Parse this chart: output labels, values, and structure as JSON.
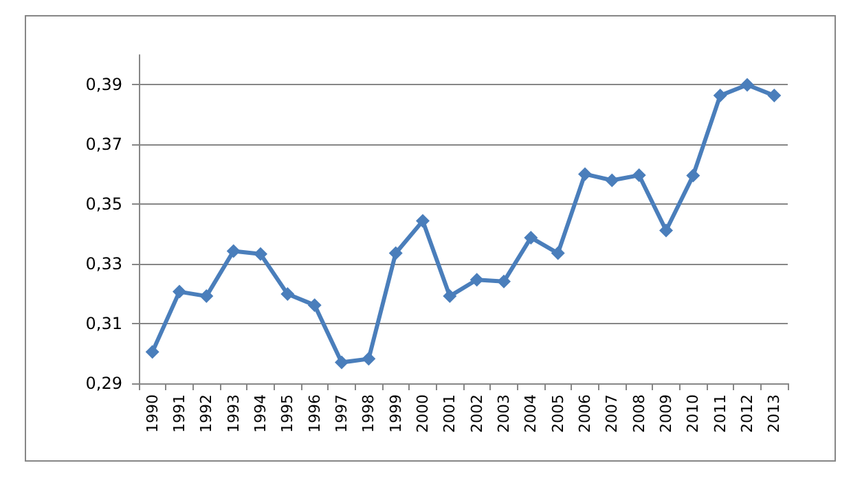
{
  "chart_data": {
    "type": "line",
    "categories": [
      "1990",
      "1991",
      "1992",
      "1993",
      "1994",
      "1995",
      "1996",
      "1997",
      "1998",
      "1999",
      "2000",
      "2001",
      "2002",
      "2003",
      "2004",
      "2005",
      "2006",
      "2007",
      "2008",
      "2009",
      "2010",
      "2011",
      "2012",
      "2013"
    ],
    "series": [
      {
        "color": "#4a7ebb",
        "values": [
          0.3005,
          0.3207,
          0.3192,
          0.3343,
          0.3333,
          0.3199,
          0.3162,
          0.297,
          0.2982,
          0.3336,
          0.3444,
          0.3192,
          0.3247,
          0.3241,
          0.3388,
          0.3336,
          0.3601,
          0.358,
          0.3597,
          0.3412,
          0.3596,
          0.3864,
          0.39,
          0.3864
        ]
      }
    ],
    "ylim": [
      0.29,
      0.4
    ],
    "yticks": [
      {
        "value": 0.29,
        "label": "0,29"
      },
      {
        "value": 0.31,
        "label": "0,31"
      },
      {
        "value": 0.33,
        "label": "0,33"
      },
      {
        "value": 0.35,
        "label": "0,35"
      },
      {
        "value": 0.37,
        "label": "0,37"
      },
      {
        "value": 0.39,
        "label": "0,39"
      }
    ],
    "grid": "y",
    "marker": "diamond",
    "line_style": "solid"
  }
}
